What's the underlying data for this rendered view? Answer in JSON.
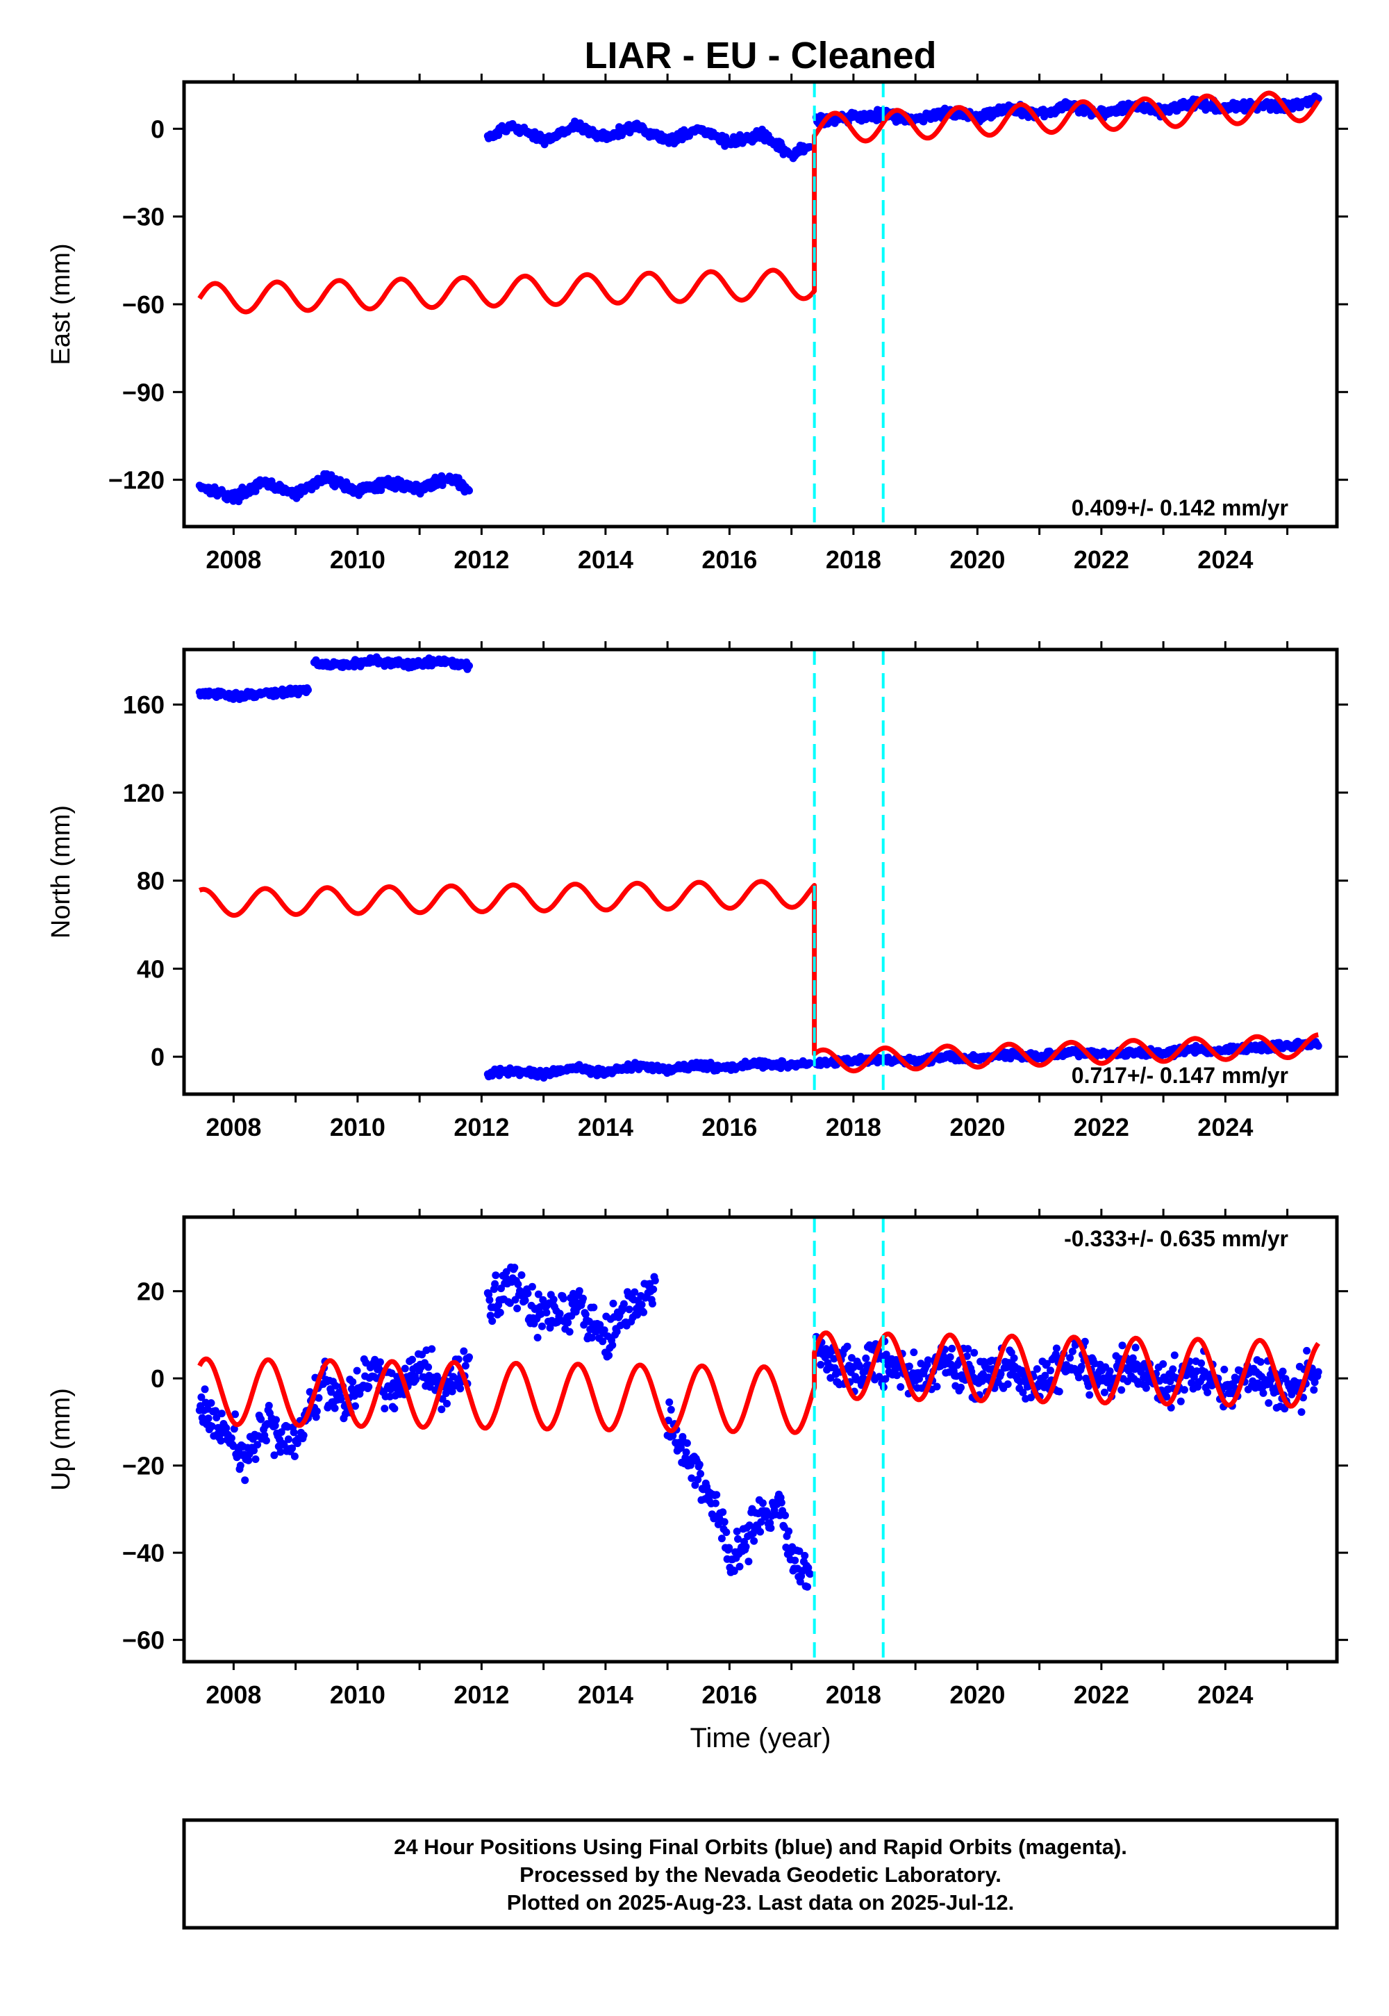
{
  "title": "LIAR  - EU - Cleaned",
  "xlabel": "Time (year)",
  "colors": {
    "data": "#0000ff",
    "model": "#ff0000",
    "offset": "#00ffff",
    "frame": "#000000"
  },
  "chart_data": [
    {
      "type": "scatter",
      "name": "east",
      "ylabel": "East (mm)",
      "rate": "0.409+/- 0.142 mm/yr",
      "xlim": [
        2007.2,
        2025.8
      ],
      "ylim": [
        -136,
        16
      ],
      "xticks": [
        2008,
        2010,
        2012,
        2014,
        2016,
        2018,
        2020,
        2022,
        2024
      ],
      "yticks": [
        0,
        -30,
        -60,
        -90,
        -120
      ],
      "ytick_labels": [
        "0",
        "−30",
        "−60",
        "−90",
        "−120"
      ],
      "offset_lines": [
        2017.37,
        2018.48
      ],
      "data_segments": [
        {
          "x": [
            2007.45,
            2008.0,
            2008.5,
            2009.0,
            2009.5,
            2010.0,
            2010.5,
            2011.0,
            2011.5,
            2011.8
          ],
          "y": [
            -122,
            -126,
            -121,
            -125,
            -119,
            -124,
            -121,
            -123,
            -119,
            -124
          ]
        },
        {
          "x": [
            2012.1,
            2012.5,
            2013.0,
            2013.5,
            2014.0,
            2014.5,
            2015.0,
            2015.5,
            2016.0,
            2016.5,
            2017.0,
            2017.3
          ],
          "y": [
            -3,
            1,
            -4,
            1,
            -3,
            1,
            -4,
            0,
            -5,
            -2,
            -9,
            -6
          ]
        },
        {
          "x": [
            2017.4,
            2018.0,
            2018.5,
            2019.0,
            2019.5,
            2020.0,
            2020.5,
            2021.0,
            2021.5,
            2022.0,
            2022.5,
            2023.0,
            2023.5,
            2024.0,
            2024.5,
            2025.0,
            2025.5
          ],
          "y": [
            3,
            4,
            5,
            3,
            6,
            4,
            7,
            5,
            8,
            5,
            8,
            6,
            9,
            7,
            8,
            8,
            10
          ]
        }
      ],
      "model_segments": [
        {
          "x_start": 2007.45,
          "x_end": 2017.37,
          "y_start": -58,
          "y_end": -53,
          "amplitude": 5,
          "phase": 0.0
        },
        {
          "x_start": 2017.37,
          "x_end": 2025.5,
          "y_start": 0,
          "y_end": 8,
          "amplitude": 5,
          "phase": 0.0
        }
      ]
    },
    {
      "type": "scatter",
      "name": "north",
      "ylabel": "North (mm)",
      "rate": "0.717+/- 0.147 mm/yr",
      "xlim": [
        2007.2,
        2025.8
      ],
      "ylim": [
        -17,
        185
      ],
      "xticks": [
        2008,
        2010,
        2012,
        2014,
        2016,
        2018,
        2020,
        2022,
        2024
      ],
      "yticks": [
        160,
        120,
        80,
        40,
        0
      ],
      "ytick_labels": [
        "160",
        "120",
        "80",
        "40",
        "0"
      ],
      "offset_lines": [
        2017.37,
        2018.48
      ],
      "data_segments": [
        {
          "x": [
            2007.45,
            2008.0,
            2008.5,
            2009.0,
            2009.2
          ],
          "y": [
            165,
            164,
            165,
            166,
            167
          ]
        },
        {
          "x": [
            2009.3,
            2009.8,
            2010.3,
            2010.8,
            2011.3,
            2011.8
          ],
          "y": [
            179,
            178,
            180,
            178,
            180,
            178
          ]
        },
        {
          "x": [
            2012.1,
            2012.5,
            2013.0,
            2013.5,
            2014.0,
            2014.5,
            2015.0,
            2015.5,
            2016.0,
            2016.5,
            2017.0,
            2017.3
          ],
          "y": [
            -8,
            -6,
            -8,
            -5,
            -7,
            -4,
            -6,
            -4,
            -5,
            -3,
            -4,
            -3
          ]
        },
        {
          "x": [
            2017.4,
            2018.0,
            2018.5,
            2019.0,
            2019.5,
            2020.0,
            2020.5,
            2021.0,
            2021.5,
            2022.0,
            2022.5,
            2023.0,
            2023.5,
            2024.0,
            2024.5,
            2025.0,
            2025.5
          ],
          "y": [
            -3,
            -2,
            -1,
            -2,
            0,
            -1,
            1,
            0,
            2,
            1,
            2,
            2,
            3,
            3,
            4,
            5,
            6
          ]
        }
      ],
      "model_segments": [
        {
          "x_start": 2007.45,
          "x_end": 2017.37,
          "y_start": 70,
          "y_end": 74,
          "amplitude": 6,
          "phase": 1.2
        },
        {
          "x_start": 2017.37,
          "x_end": 2025.5,
          "y_start": -2,
          "y_end": 5,
          "amplitude": 5,
          "phase": 1.2
        }
      ]
    },
    {
      "type": "scatter",
      "name": "up",
      "ylabel": "Up (mm)",
      "rate": "-0.333+/- 0.635 mm/yr",
      "xlim": [
        2007.2,
        2025.8
      ],
      "ylim": [
        -65,
        37
      ],
      "xticks": [
        2008,
        2010,
        2012,
        2014,
        2016,
        2018,
        2020,
        2022,
        2024
      ],
      "yticks": [
        20,
        0,
        -20,
        -40,
        -60
      ],
      "ytick_labels": [
        "20",
        "0",
        "−20",
        "−40",
        "−60"
      ],
      "offset_lines": [
        2017.37,
        2018.48
      ],
      "data_segments": [
        {
          "x": [
            2007.45,
            2007.8,
            2008.2,
            2008.6,
            2009.0,
            2009.4,
            2009.8,
            2010.2,
            2010.6,
            2011.0,
            2011.4,
            2011.8
          ],
          "y": [
            -6,
            -12,
            -18,
            -10,
            -16,
            0,
            -5,
            2,
            -4,
            3,
            -3,
            2
          ]
        },
        {
          "x": [
            2012.1,
            2012.5,
            2013.0,
            2013.5,
            2014.0,
            2014.4,
            2014.8
          ],
          "y": [
            18,
            22,
            14,
            18,
            10,
            16,
            20
          ]
        },
        {
          "x": [
            2015.0,
            2015.4,
            2015.8,
            2016.0,
            2016.4,
            2016.8,
            2017.0,
            2017.3
          ],
          "y": [
            -10,
            -20,
            -30,
            -42,
            -35,
            -28,
            -40,
            -46
          ]
        },
        {
          "x": [
            2017.4,
            2018.0,
            2018.5,
            2019.0,
            2019.5,
            2020.0,
            2020.5,
            2021.0,
            2021.5,
            2022.0,
            2022.5,
            2023.0,
            2023.5,
            2024.0,
            2024.5,
            2025.0,
            2025.5
          ],
          "y": [
            5,
            2,
            4,
            0,
            3,
            0,
            2,
            -1,
            4,
            0,
            3,
            -2,
            2,
            -3,
            1,
            -4,
            2
          ]
        }
      ],
      "model_segments": [
        {
          "x_start": 2007.45,
          "x_end": 2017.37,
          "y_start": -3,
          "y_end": -5,
          "amplitude": 7.5,
          "phase": 0.9
        },
        {
          "x_start": 2017.37,
          "x_end": 2025.5,
          "y_start": 3,
          "y_end": 1,
          "amplitude": 7.5,
          "phase": 0.9
        }
      ]
    }
  ],
  "footer": {
    "line1": "24 Hour Positions Using Final Orbits (blue) and Rapid Orbits (magenta).",
    "line2": "Processed by the Nevada Geodetic Laboratory.",
    "line3": "Plotted on 2025-Aug-23. Last data on 2025-Jul-12."
  }
}
